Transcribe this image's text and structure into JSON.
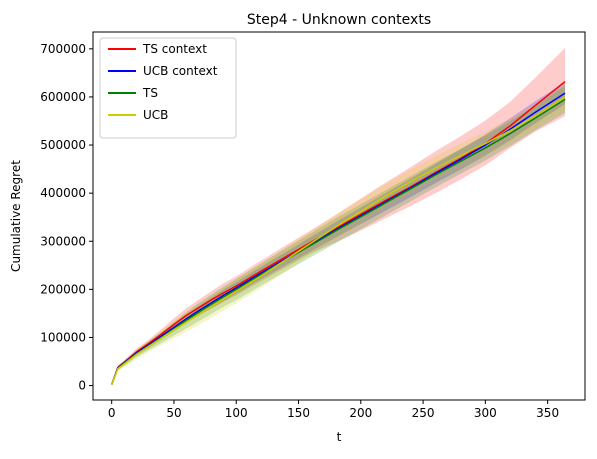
{
  "chart_data": {
    "type": "line",
    "title": "Step4 - Unknown contexts",
    "xlabel": "t",
    "ylabel": "Cumulative Regret",
    "xlim": [
      -15,
      380
    ],
    "ylim": [
      -30000,
      735000
    ],
    "xticks": [
      "0",
      "50",
      "100",
      "150",
      "200",
      "250",
      "300",
      "350"
    ],
    "yticks": [
      "0",
      "100000",
      "200000",
      "300000",
      "400000",
      "500000",
      "600000",
      "700000"
    ],
    "grid": false,
    "legend_position": "top-left",
    "x": [
      0,
      5,
      10,
      20,
      30,
      40,
      50,
      60,
      70,
      80,
      90,
      100,
      120,
      140,
      160,
      180,
      200,
      220,
      240,
      260,
      280,
      300,
      320,
      340,
      364
    ],
    "series": [
      {
        "name": "TS context",
        "color": "#ff0000",
        "values": [
          2000,
          38000,
          48000,
          70000,
          88000,
          107000,
          127000,
          146000,
          162000,
          178000,
          193000,
          207000,
          238000,
          268000,
          298000,
          327000,
          356000,
          385000,
          413000,
          443000,
          472000,
          503000,
          540000,
          582000,
          632000
        ],
        "band_low": [
          1000,
          34000,
          43000,
          63000,
          80000,
          97000,
          114000,
          131000,
          146000,
          160000,
          174000,
          188000,
          217000,
          246000,
          275000,
          298000,
          322000,
          348000,
          373000,
          400000,
          428000,
          458000,
          494000,
          528000,
          560000
        ],
        "band_high": [
          3000,
          42000,
          53000,
          77000,
          96000,
          117000,
          140000,
          161000,
          179000,
          196000,
          213000,
          227000,
          260000,
          292000,
          323000,
          355000,
          389000,
          422000,
          454000,
          487000,
          518000,
          551000,
          590000,
          640000,
          702000
        ]
      },
      {
        "name": "UCB context",
        "color": "#0000ff",
        "values": [
          2000,
          37000,
          47000,
          68000,
          85000,
          103000,
          121000,
          139000,
          156000,
          172000,
          188000,
          203000,
          234000,
          264000,
          294000,
          324000,
          353000,
          382000,
          411000,
          441000,
          470000,
          500000,
          533000,
          568000,
          608000
        ],
        "band_low": [
          1000,
          34000,
          43000,
          63000,
          79000,
          96000,
          113000,
          130000,
          146000,
          161000,
          176000,
          191000,
          221000,
          250000,
          279000,
          308000,
          336000,
          364000,
          392000,
          421000,
          449000,
          478000,
          510000,
          545000,
          585000
        ],
        "band_high": [
          3000,
          40000,
          51000,
          73000,
          91000,
          110000,
          129000,
          148000,
          166000,
          183000,
          200000,
          215000,
          247000,
          278000,
          309000,
          340000,
          370000,
          400000,
          430000,
          461000,
          491000,
          522000,
          556000,
          591000,
          631000
        ]
      },
      {
        "name": "TS",
        "color": "#008000",
        "values": [
          2000,
          36000,
          46000,
          66000,
          83000,
          100000,
          118000,
          136000,
          153000,
          169000,
          185000,
          200000,
          231000,
          262000,
          292000,
          322000,
          351000,
          380000,
          409000,
          438000,
          466000,
          494000,
          524000,
          556000,
          595000
        ],
        "band_low": [
          1000,
          32000,
          41000,
          59000,
          74000,
          89000,
          104000,
          119000,
          134000,
          149000,
          164000,
          178000,
          208000,
          238000,
          267000,
          296000,
          325000,
          354000,
          383000,
          412000,
          440000,
          468000,
          498000,
          530000,
          567000
        ],
        "band_high": [
          3000,
          40000,
          51000,
          73000,
          92000,
          111000,
          132000,
          153000,
          172000,
          189000,
          206000,
          222000,
          254000,
          286000,
          317000,
          348000,
          377000,
          406000,
          435000,
          464000,
          492000,
          520000,
          550000,
          582000,
          623000
        ]
      },
      {
        "name": "UCB",
        "color": "#cccc00",
        "values": [
          2000,
          35000,
          45000,
          65000,
          82000,
          99000,
          116000,
          132000,
          148000,
          164000,
          180000,
          196000,
          228000,
          262000,
          296000,
          330000,
          362000,
          394000,
          424000,
          452000,
          478000,
          503000,
          530000,
          560000,
          600000
        ],
        "band_low": [
          1000,
          30000,
          38000,
          55000,
          70000,
          84000,
          98000,
          112000,
          126000,
          141000,
          156000,
          171000,
          203000,
          237000,
          271000,
          305000,
          337000,
          369000,
          399000,
          427000,
          453000,
          478000,
          505000,
          535000,
          573000
        ],
        "band_high": [
          3000,
          40000,
          52000,
          75000,
          94000,
          114000,
          134000,
          152000,
          170000,
          187000,
          204000,
          221000,
          253000,
          287000,
          321000,
          355000,
          387000,
          419000,
          449000,
          477000,
          503000,
          528000,
          555000,
          585000,
          627000
        ]
      }
    ]
  }
}
